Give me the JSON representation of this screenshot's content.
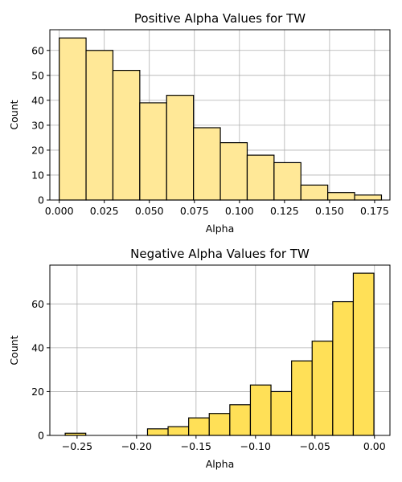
{
  "chart_data": [
    {
      "type": "bar",
      "title": "Positive Alpha Values for TW",
      "xlabel": "Alpha",
      "ylabel": "Count",
      "xlim": [
        -0.0052,
        0.1835
      ],
      "ylim": [
        0,
        68.3
      ],
      "xticks": [
        0.0,
        0.025,
        0.05,
        0.075,
        0.1,
        0.125,
        0.15,
        0.175
      ],
      "xtick_labels": [
        "0.000",
        "0.025",
        "0.050",
        "0.075",
        "0.100",
        "0.125",
        "0.150",
        "0.175"
      ],
      "yticks": [
        0,
        10,
        20,
        30,
        40,
        50,
        60
      ],
      "ytick_labels": [
        "0",
        "10",
        "20",
        "30",
        "40",
        "50",
        "60"
      ],
      "grid": true,
      "bar_color": "#ffe897",
      "edge_color": "#000000",
      "bin_edges": [
        0.0,
        0.0149,
        0.0298,
        0.0447,
        0.0596,
        0.0745,
        0.0894,
        0.1043,
        0.1192,
        0.1341,
        0.149,
        0.1639,
        0.1788
      ],
      "values": [
        65,
        60,
        52,
        39,
        42,
        29,
        23,
        18,
        15,
        6,
        3,
        2
      ]
    },
    {
      "type": "bar",
      "title": "Negative Alpha Values for TW",
      "xlabel": "Alpha",
      "ylabel": "Count",
      "xlim": [
        -0.2729,
        0.013
      ],
      "ylim": [
        0,
        77.7
      ],
      "xticks": [
        -0.25,
        -0.2,
        -0.15,
        -0.1,
        -0.05,
        0.0
      ],
      "xtick_labels": [
        "−0.25",
        "−0.20",
        "−0.15",
        "−0.10",
        "−0.05",
        "0.00"
      ],
      "yticks": [
        0,
        20,
        40,
        60
      ],
      "ytick_labels": [
        "0",
        "20",
        "40",
        "60"
      ],
      "grid": true,
      "bar_color": "#ffe057",
      "edge_color": "#000000",
      "bin_edges": [
        -0.26,
        -0.2427,
        -0.2254,
        -0.2081,
        -0.1908,
        -0.1735,
        -0.1562,
        -0.1389,
        -0.1216,
        -0.1043,
        -0.087,
        -0.0697,
        -0.0524,
        -0.0351,
        -0.0178,
        -0.0005
      ],
      "values": [
        1,
        0,
        0,
        0,
        3,
        4,
        8,
        10,
        14,
        23,
        20,
        34,
        43,
        61,
        74
      ]
    }
  ]
}
